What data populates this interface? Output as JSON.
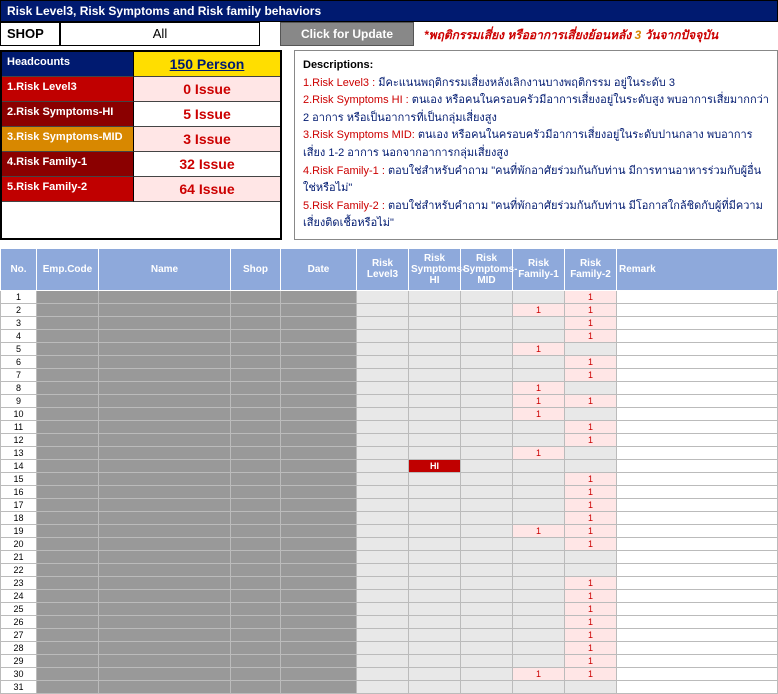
{
  "title_bar": "Risk Level3, Risk Symptoms and Risk family behaviors",
  "shop": {
    "label": "SHOP",
    "value": "All"
  },
  "update_button": "Click for Update",
  "warning_prefix": "*พฤติกรรมเสี่ยง หรืออาการเสี่ยงย้อนหลัง ",
  "warning_days": "3",
  "warning_suffix": " วันจากปัจจุบัน",
  "headcounts": {
    "header_label": "Headcounts",
    "header_value": "150 Person",
    "rows": [
      {
        "label": "1.Risk Level3",
        "value": "0 Issue",
        "lcls": "l-red",
        "vcls": "v-pink"
      },
      {
        "label": "2.Risk Symptoms-HI",
        "value": "5 Issue",
        "lcls": "l-dkred",
        "vcls": "v-white"
      },
      {
        "label": "3.Risk Symptoms-MID",
        "value": "3 Issue",
        "lcls": "l-orange",
        "vcls": "v-pink"
      },
      {
        "label": "4.Risk Family-1",
        "value": "32 Issue",
        "lcls": "l-dkred",
        "vcls": "v-white"
      },
      {
        "label": "5.Risk Family-2",
        "value": "64 Issue",
        "lcls": "l-red",
        "vcls": "v-pink"
      }
    ]
  },
  "descriptions": {
    "title": "Descriptions:",
    "lines": [
      {
        "k": "1.Risk Level3 : ",
        "t": "มีคะแนนพฤติกรรมเสี่ยงหลังเลิกงานบางพฤติกรรม อยู่ในระดับ 3"
      },
      {
        "k": "2.Risk Symptoms HI : ",
        "t": "ตนเอง หรือคนในครอบครัวมีอาการเสี่ยงอยู่ในระดับสูง พบอาการเสี่ยมากกว่า 2 อาการ หรือเป็นอาการที่เป็นกลุ่มเสี่ยงสูง"
      },
      {
        "k": "3.Risk Symptoms MID: ",
        "t": "ตนเอง หรือคนในครอบครัวมีอาการเสี่ยงอยู่ในระดับปานกลาง พบอาการเสี่ยง 1-2 อาการ นอกจากอาการกลุ่มเสี่ยงสูง"
      },
      {
        "k": "4.Risk Family-1 : ",
        "t": "ตอบใช่สำหรับคำถาม \"คนที่พักอาศัยร่วมกันกับท่าน มีการทานอาหารร่วมกับผู้อื่นใช่หรือไม่\""
      },
      {
        "k": "5.Risk Family-2 : ",
        "t": "ตอบใช่สำหรับคำถาม \"คนที่พักอาศัยร่วมกันกับท่าน มีโอกาสใกล้ชิดกับผู้ที่มีความเสี่ยงติดเชื้อหรือไม่\""
      }
    ]
  },
  "table": {
    "headers": [
      "No.",
      "Emp.Code",
      "Name",
      "Shop",
      "Date",
      "Risk Level3",
      "Risk Symptoms-HI",
      "Risk Symptoms-MID",
      "Risk Family-1",
      "Risk Family-2",
      "Remark"
    ],
    "rows": [
      {
        "no": 1,
        "f1": "",
        "f2": "1"
      },
      {
        "no": 2,
        "f1": "1",
        "f2": "1"
      },
      {
        "no": 3,
        "f1": "",
        "f2": "1"
      },
      {
        "no": 4,
        "f1": "",
        "f2": "1"
      },
      {
        "no": 5,
        "f1": "1",
        "f2": ""
      },
      {
        "no": 6,
        "f1": "",
        "f2": "1"
      },
      {
        "no": 7,
        "f1": "",
        "f2": "1"
      },
      {
        "no": 8,
        "f1": "1",
        "f2": ""
      },
      {
        "no": 9,
        "f1": "1",
        "f2": "1"
      },
      {
        "no": 10,
        "f1": "1",
        "f2": ""
      },
      {
        "no": 11,
        "f1": "",
        "f2": "1"
      },
      {
        "no": 12,
        "f1": "",
        "f2": "1"
      },
      {
        "no": 13,
        "f1": "1",
        "f2": ""
      },
      {
        "no": 14,
        "hi": "HI",
        "f1": "",
        "f2": ""
      },
      {
        "no": 15,
        "f1": "",
        "f2": "1"
      },
      {
        "no": 16,
        "f1": "",
        "f2": "1"
      },
      {
        "no": 17,
        "f1": "",
        "f2": "1"
      },
      {
        "no": 18,
        "f1": "",
        "f2": "1"
      },
      {
        "no": 19,
        "f1": "1",
        "f2": "1"
      },
      {
        "no": 20,
        "f1": "",
        "f2": "1"
      },
      {
        "no": 21,
        "f1": "",
        "f2": ""
      },
      {
        "no": 22,
        "f1": "",
        "f2": ""
      },
      {
        "no": 23,
        "f1": "",
        "f2": "1"
      },
      {
        "no": 24,
        "f1": "",
        "f2": "1"
      },
      {
        "no": 25,
        "f1": "",
        "f2": "1"
      },
      {
        "no": 26,
        "f1": "",
        "f2": "1"
      },
      {
        "no": 27,
        "f1": "",
        "f2": "1"
      },
      {
        "no": 28,
        "f1": "",
        "f2": "1"
      },
      {
        "no": 29,
        "f1": "",
        "f2": "1"
      },
      {
        "no": 30,
        "f1": "1",
        "f2": "1"
      },
      {
        "no": 31,
        "f1": "",
        "f2": ""
      }
    ]
  }
}
